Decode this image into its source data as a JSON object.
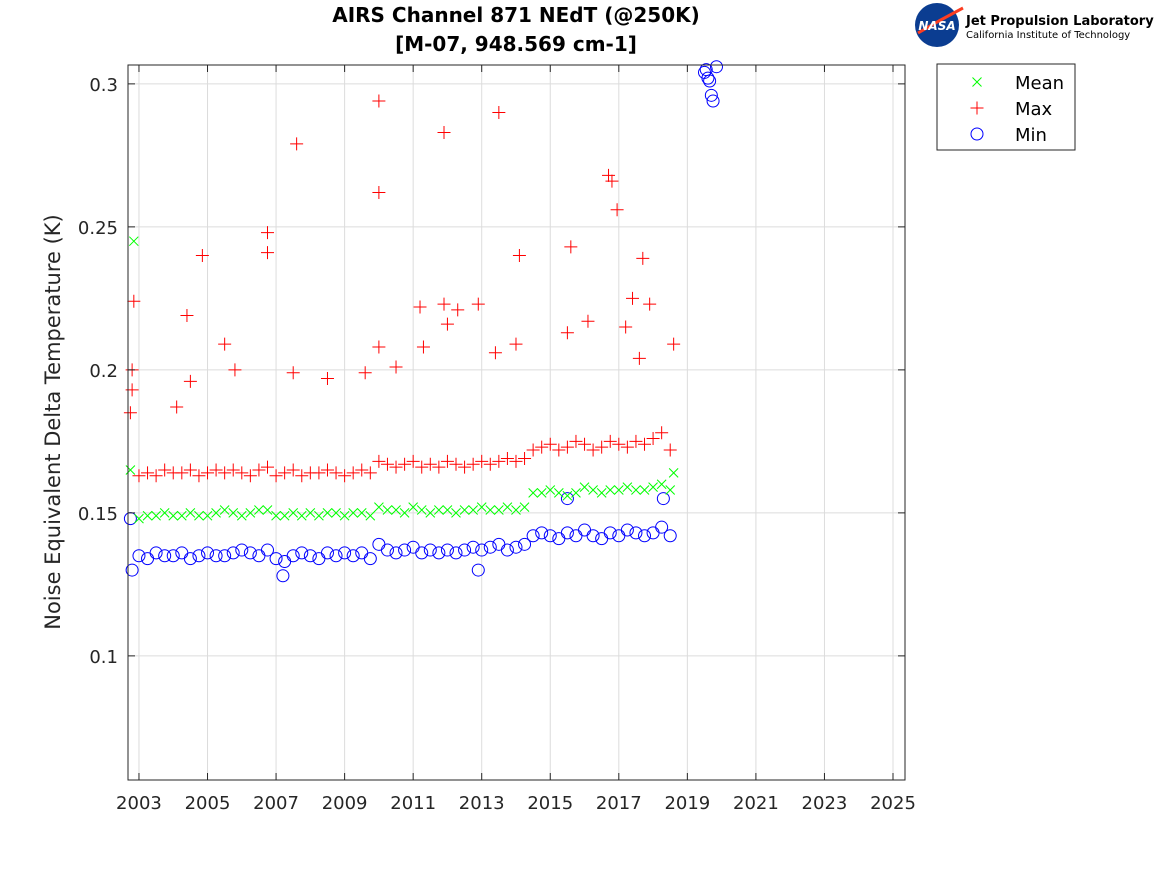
{
  "logo": {
    "org": "Jet Propulsion Laboratory",
    "sub": "California Institute of Technology",
    "badge": "NASA"
  },
  "chart_data": {
    "type": "scatter",
    "title": "AIRS Channel 871 NEdT (@250K)",
    "subtitle": "[M-07, 948.569 cm-1]",
    "xlabel": "",
    "ylabel": "Noise Equivalent Delta Temperature (K)",
    "xlim": [
      2002.68,
      2025.35
    ],
    "ylim": [
      0.0566,
      0.3066
    ],
    "xticks": [
      2003,
      2005,
      2007,
      2009,
      2011,
      2013,
      2015,
      2017,
      2019,
      2021,
      2023,
      2025
    ],
    "yticks": [
      0.1,
      0.15,
      0.2,
      0.25,
      0.3
    ],
    "ytick_labels": [
      "0.1",
      "0.15",
      "0.2",
      "0.25",
      "0.3"
    ],
    "grid": true,
    "legend_position": "outside-top-right",
    "x": [
      2002.75,
      2003.0,
      2003.25,
      2003.5,
      2003.75,
      2004.0,
      2004.25,
      2004.5,
      2004.75,
      2005.0,
      2005.25,
      2005.5,
      2005.75,
      2006.0,
      2006.25,
      2006.5,
      2006.75,
      2007.0,
      2007.25,
      2007.5,
      2007.75,
      2008.0,
      2008.25,
      2008.5,
      2008.75,
      2009.0,
      2009.25,
      2009.5,
      2009.75,
      2010.0,
      2010.25,
      2010.5,
      2010.75,
      2011.0,
      2011.25,
      2011.5,
      2011.75,
      2012.0,
      2012.25,
      2012.5,
      2012.75,
      2013.0,
      2013.25,
      2013.5,
      2013.75,
      2014.0,
      2014.25,
      2014.5,
      2014.75,
      2015.0,
      2015.25,
      2015.5,
      2015.75,
      2016.0,
      2016.25,
      2016.5,
      2016.75,
      2017.0,
      2017.25,
      2017.5,
      2017.75,
      2018.0,
      2018.25,
      2018.5
    ],
    "series": [
      {
        "name": "Mean",
        "marker": "x",
        "color": "#00ff00",
        "values": [
          0.165,
          0.148,
          0.149,
          0.149,
          0.15,
          0.149,
          0.149,
          0.15,
          0.149,
          0.149,
          0.15,
          0.151,
          0.15,
          0.149,
          0.15,
          0.151,
          0.151,
          0.149,
          0.149,
          0.15,
          0.149,
          0.15,
          0.149,
          0.15,
          0.15,
          0.149,
          0.15,
          0.15,
          0.149,
          0.152,
          0.151,
          0.151,
          0.15,
          0.152,
          0.151,
          0.15,
          0.151,
          0.151,
          0.15,
          0.151,
          0.151,
          0.152,
          0.151,
          0.151,
          0.152,
          0.151,
          0.152,
          0.157,
          0.157,
          0.158,
          0.157,
          0.156,
          0.157,
          0.159,
          0.158,
          0.157,
          0.158,
          0.158,
          0.159,
          0.158,
          0.158,
          0.159,
          0.16,
          0.158
        ],
        "outliers": [
          [
            2002.85,
            0.245
          ],
          [
            2018.6,
            0.164
          ]
        ]
      },
      {
        "name": "Max",
        "marker": "+",
        "color": "#ff0000",
        "values": [
          0.185,
          0.163,
          0.164,
          0.163,
          0.165,
          0.164,
          0.164,
          0.165,
          0.163,
          0.164,
          0.165,
          0.164,
          0.165,
          0.164,
          0.163,
          0.165,
          0.166,
          0.163,
          0.164,
          0.165,
          0.163,
          0.164,
          0.164,
          0.165,
          0.164,
          0.163,
          0.164,
          0.165,
          0.164,
          0.168,
          0.167,
          0.166,
          0.167,
          0.168,
          0.166,
          0.167,
          0.166,
          0.168,
          0.167,
          0.166,
          0.167,
          0.168,
          0.167,
          0.168,
          0.169,
          0.168,
          0.169,
          0.172,
          0.173,
          0.174,
          0.172,
          0.173,
          0.175,
          0.174,
          0.172,
          0.173,
          0.175,
          0.174,
          0.173,
          0.175,
          0.174,
          0.176,
          0.178,
          0.172
        ],
        "outliers": [
          [
            2002.85,
            0.224
          ],
          [
            2002.8,
            0.2
          ],
          [
            2002.8,
            0.193
          ],
          [
            2004.1,
            0.187
          ],
          [
            2004.4,
            0.219
          ],
          [
            2004.5,
            0.196
          ],
          [
            2004.85,
            0.24
          ],
          [
            2005.5,
            0.209
          ],
          [
            2005.8,
            0.2
          ],
          [
            2006.75,
            0.248
          ],
          [
            2006.75,
            0.241
          ],
          [
            2007.6,
            0.279
          ],
          [
            2007.5,
            0.199
          ],
          [
            2008.5,
            0.197
          ],
          [
            2009.6,
            0.199
          ],
          [
            2010.0,
            0.294
          ],
          [
            2010.0,
            0.262
          ],
          [
            2010.0,
            0.208
          ],
          [
            2010.5,
            0.201
          ],
          [
            2011.2,
            0.222
          ],
          [
            2011.3,
            0.208
          ],
          [
            2011.9,
            0.283
          ],
          [
            2011.9,
            0.223
          ],
          [
            2012.0,
            0.216
          ],
          [
            2012.3,
            0.221
          ],
          [
            2012.9,
            0.223
          ],
          [
            2013.5,
            0.29
          ],
          [
            2013.4,
            0.206
          ],
          [
            2014.1,
            0.24
          ],
          [
            2014.0,
            0.209
          ],
          [
            2015.6,
            0.243
          ],
          [
            2015.5,
            0.213
          ],
          [
            2016.1,
            0.217
          ],
          [
            2016.7,
            0.268
          ],
          [
            2016.8,
            0.266
          ],
          [
            2016.95,
            0.256
          ],
          [
            2017.2,
            0.215
          ],
          [
            2017.4,
            0.225
          ],
          [
            2017.6,
            0.204
          ],
          [
            2017.7,
            0.239
          ],
          [
            2017.9,
            0.223
          ],
          [
            2018.6,
            0.209
          ]
        ]
      },
      {
        "name": "Min",
        "marker": "o",
        "color": "#0000ff",
        "values": [
          0.148,
          0.135,
          0.134,
          0.136,
          0.135,
          0.135,
          0.136,
          0.134,
          0.135,
          0.136,
          0.135,
          0.135,
          0.136,
          0.137,
          0.136,
          0.135,
          0.137,
          0.134,
          0.133,
          0.135,
          0.136,
          0.135,
          0.134,
          0.136,
          0.135,
          0.136,
          0.135,
          0.136,
          0.134,
          0.139,
          0.137,
          0.136,
          0.137,
          0.138,
          0.136,
          0.137,
          0.136,
          0.137,
          0.136,
          0.137,
          0.138,
          0.137,
          0.138,
          0.139,
          0.137,
          0.138,
          0.139,
          0.142,
          0.143,
          0.142,
          0.141,
          0.143,
          0.142,
          0.144,
          0.142,
          0.141,
          0.143,
          0.142,
          0.144,
          0.143,
          0.142,
          0.143,
          0.145,
          0.142
        ],
        "outliers": [
          [
            2002.8,
            0.13
          ],
          [
            2007.2,
            0.128
          ],
          [
            2012.9,
            0.13
          ],
          [
            2015.5,
            0.155
          ],
          [
            2018.3,
            0.155
          ],
          [
            2019.5,
            0.304
          ],
          [
            2019.55,
            0.305
          ],
          [
            2019.6,
            0.302
          ],
          [
            2019.65,
            0.301
          ],
          [
            2019.7,
            0.296
          ],
          [
            2019.75,
            0.294
          ],
          [
            2019.85,
            0.306
          ]
        ]
      }
    ]
  }
}
